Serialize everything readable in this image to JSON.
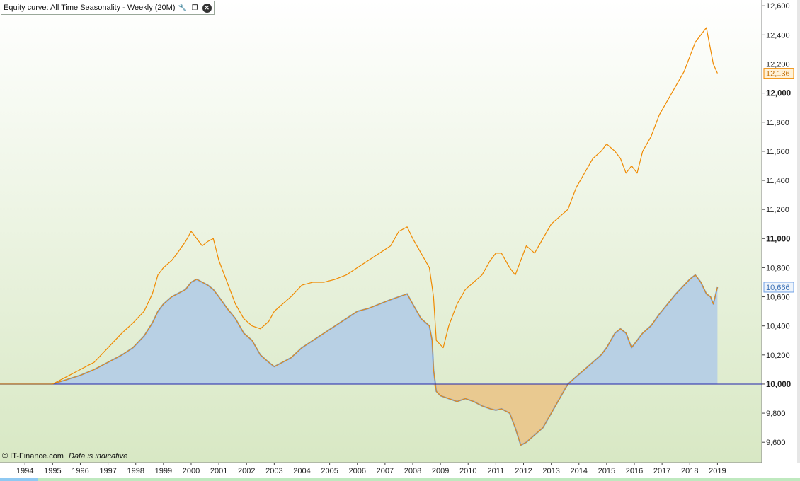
{
  "window": {
    "title": "Equity curve: All Time Seasonality - Weekly (20M)",
    "icons": [
      "wrench-icon",
      "restore-window-icon",
      "close-icon"
    ]
  },
  "footer": {
    "copyright": "© IT-Finance.com",
    "note": "Data is indicative"
  },
  "colors": {
    "background_top": "#ffffff",
    "background_bottom": "#d8e8c4",
    "equity_line": "#f08a00",
    "secondary_line": "#6fa0e6",
    "positive_fill": "#b8d0e4",
    "negative_fill": "#e9c990",
    "baseline": "#2222aa",
    "axis_text": "#222222"
  },
  "chart_data": {
    "type": "line",
    "title": "Equity curve: All Time Seasonality - Weekly (20M)",
    "xlabel": "",
    "ylabel": "",
    "xlim": [
      1993.1,
      2020.6
    ],
    "ylim": [
      9460,
      12640
    ],
    "grid": false,
    "baseline": 10000,
    "x_ticks": [
      "1994",
      "1995",
      "1996",
      "1997",
      "1998",
      "1999",
      "2000",
      "2001",
      "2002",
      "2003",
      "2004",
      "2005",
      "2006",
      "2007",
      "2008",
      "2009",
      "2010",
      "2011",
      "2012",
      "2013",
      "2014",
      "2015",
      "2016",
      "2017",
      "2018",
      "2019"
    ],
    "y_ticks": [
      "9,600",
      "9,800",
      "10,000",
      "10,200",
      "10,400",
      "10,600",
      "10,800",
      "11,000",
      "11,200",
      "11,400",
      "11,600",
      "11,800",
      "12,000",
      "12,200",
      "12,400",
      "12,600"
    ],
    "y_bold_ticks": [
      "10,000",
      "11,000",
      "12,000"
    ],
    "last_value_labels": [
      {
        "series": "equity",
        "text": "12,136",
        "value": 12136
      },
      {
        "series": "drawdown_area",
        "text": "10,666",
        "value": 10666
      }
    ],
    "series": [
      {
        "name": "equity",
        "style": "line",
        "x": [
          1993.1,
          1995.0,
          1995.5,
          1996.0,
          1996.5,
          1997.0,
          1997.5,
          1997.9,
          1998.3,
          1998.6,
          1998.8,
          1999.0,
          1999.3,
          1999.5,
          1999.8,
          2000.0,
          2000.2,
          2000.4,
          2000.6,
          2000.8,
          2001.0,
          2001.3,
          2001.6,
          2001.9,
          2002.2,
          2002.5,
          2002.8,
          2003.0,
          2003.3,
          2003.6,
          2004.0,
          2004.4,
          2004.8,
          2005.2,
          2005.6,
          2006.0,
          2006.4,
          2006.8,
          2007.2,
          2007.5,
          2007.8,
          2008.0,
          2008.3,
          2008.6,
          2008.75,
          2008.85,
          2009.1,
          2009.3,
          2009.6,
          2009.9,
          2010.2,
          2010.5,
          2010.8,
          2011.0,
          2011.2,
          2011.5,
          2011.7,
          2011.9,
          2012.1,
          2012.4,
          2012.7,
          2013.0,
          2013.3,
          2013.6,
          2013.9,
          2014.2,
          2014.5,
          2014.8,
          2015.0,
          2015.3,
          2015.5,
          2015.7,
          2015.9,
          2016.1,
          2016.3,
          2016.6,
          2016.9,
          2017.2,
          2017.5,
          2017.8,
          2018.0,
          2018.2,
          2018.4,
          2018.6,
          2018.75,
          2018.85,
          2019.0
        ],
        "values": [
          10000,
          10000,
          10050,
          10100,
          10150,
          10250,
          10350,
          10420,
          10500,
          10620,
          10750,
          10800,
          10850,
          10900,
          10980,
          11050,
          11000,
          10950,
          10980,
          11000,
          10850,
          10700,
          10550,
          10450,
          10400,
          10380,
          10430,
          10500,
          10550,
          10600,
          10680,
          10700,
          10700,
          10720,
          10750,
          10800,
          10850,
          10900,
          10950,
          11050,
          11080,
          11000,
          10900,
          10800,
          10600,
          10300,
          10250,
          10400,
          10550,
          10650,
          10700,
          10750,
          10850,
          10900,
          10900,
          10800,
          10750,
          10850,
          10950,
          10900,
          11000,
          11100,
          11150,
          11200,
          11350,
          11450,
          11550,
          11600,
          11650,
          11600,
          11550,
          11450,
          11500,
          11450,
          11600,
          11700,
          11850,
          11950,
          12050,
          12150,
          12250,
          12350,
          12400,
          12450,
          12300,
          12200,
          12136
        ]
      },
      {
        "name": "drawdown_area",
        "style": "area",
        "x": [
          1993.1,
          1995.0,
          1995.5,
          1996.0,
          1996.5,
          1997.0,
          1997.5,
          1997.9,
          1998.3,
          1998.6,
          1998.8,
          1999.0,
          1999.3,
          1999.5,
          1999.8,
          2000.0,
          2000.2,
          2000.4,
          2000.6,
          2000.8,
          2001.0,
          2001.3,
          2001.6,
          2001.9,
          2002.2,
          2002.5,
          2002.8,
          2003.0,
          2003.3,
          2003.6,
          2004.0,
          2004.4,
          2004.8,
          2005.2,
          2005.6,
          2006.0,
          2006.4,
          2006.8,
          2007.2,
          2007.5,
          2007.8,
          2008.0,
          2008.3,
          2008.6,
          2008.7,
          2008.75,
          2008.85,
          2009.0,
          2009.3,
          2009.6,
          2009.9,
          2010.2,
          2010.5,
          2010.8,
          2011.0,
          2011.2,
          2011.5,
          2011.7,
          2011.9,
          2012.1,
          2012.4,
          2012.7,
          2013.0,
          2013.3,
          2013.6,
          2013.9,
          2014.2,
          2014.5,
          2014.8,
          2015.0,
          2015.3,
          2015.5,
          2015.7,
          2015.9,
          2016.1,
          2016.3,
          2016.6,
          2016.9,
          2017.2,
          2017.5,
          2017.8,
          2018.0,
          2018.2,
          2018.4,
          2018.6,
          2018.75,
          2018.85,
          2019.0
        ],
        "values": [
          10000,
          10000,
          10030,
          10060,
          10100,
          10150,
          10200,
          10250,
          10330,
          10420,
          10500,
          10550,
          10600,
          10620,
          10650,
          10700,
          10720,
          10700,
          10680,
          10650,
          10600,
          10520,
          10450,
          10350,
          10300,
          10200,
          10150,
          10120,
          10150,
          10180,
          10250,
          10300,
          10350,
          10400,
          10450,
          10500,
          10520,
          10550,
          10580,
          10600,
          10620,
          10550,
          10450,
          10400,
          10300,
          10100,
          9950,
          9920,
          9900,
          9880,
          9900,
          9880,
          9850,
          9830,
          9820,
          9830,
          9800,
          9700,
          9580,
          9600,
          9650,
          9700,
          9800,
          9900,
          10000,
          10050,
          10100,
          10150,
          10200,
          10250,
          10350,
          10380,
          10350,
          10250,
          10300,
          10350,
          10400,
          10480,
          10550,
          10620,
          10680,
          10720,
          10750,
          10700,
          10620,
          10600,
          10550,
          10666
        ]
      }
    ]
  }
}
